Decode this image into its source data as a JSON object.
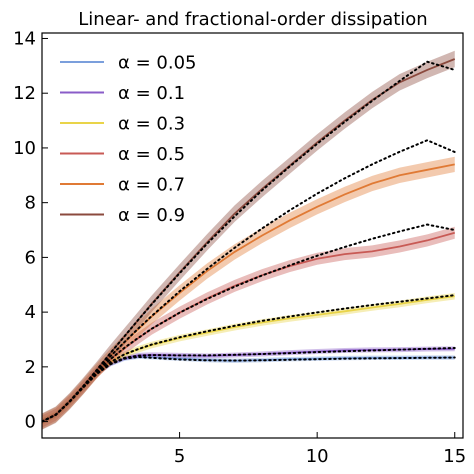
{
  "chart_data": {
    "type": "line",
    "title": "Linear- and fractional-order dissipation",
    "xlabel": "",
    "ylabel": "",
    "xlim": [
      0,
      15.3
    ],
    "ylim": [
      -0.6,
      14.2
    ],
    "xticks": [
      5,
      10,
      15
    ],
    "xtick_labels": [
      "5",
      "10",
      "15"
    ],
    "yticks": [
      0,
      2,
      4,
      6,
      8,
      10,
      12,
      14
    ],
    "ytick_labels": [
      "0",
      "2",
      "4",
      "6",
      "8",
      "10",
      "12",
      "14"
    ],
    "grid": false,
    "legend_position": "top-left",
    "fit_line_style": "dotted black",
    "series": [
      {
        "name": "α = 0.05",
        "color": "#7b9fdc",
        "x": [
          0,
          0.5,
          1,
          1.5,
          2,
          2.5,
          3,
          3.5,
          4,
          5,
          6,
          7,
          8,
          9,
          10,
          11,
          12,
          13,
          14,
          15
        ],
        "values": [
          0,
          0.25,
          0.72,
          1.25,
          1.75,
          2.1,
          2.3,
          2.37,
          2.35,
          2.3,
          2.25,
          2.22,
          2.25,
          2.28,
          2.3,
          2.32,
          2.33,
          2.33,
          2.34,
          2.34
        ],
        "band": 0.08,
        "fit": [
          0,
          0.25,
          0.72,
          1.25,
          1.75,
          2.1,
          2.3,
          2.36,
          2.33,
          2.27,
          2.24,
          2.23,
          2.24,
          2.26,
          2.28,
          2.3,
          2.31,
          2.32,
          2.33,
          2.34
        ]
      },
      {
        "name": "α = 0.1",
        "color": "#8a5cc8",
        "x": [
          0,
          0.5,
          1,
          1.5,
          2,
          2.5,
          3,
          3.5,
          4,
          5,
          6,
          7,
          8,
          9,
          10,
          11,
          12,
          13,
          14,
          15
        ],
        "values": [
          0,
          0.25,
          0.72,
          1.25,
          1.76,
          2.12,
          2.33,
          2.42,
          2.44,
          2.42,
          2.4,
          2.43,
          2.47,
          2.52,
          2.56,
          2.6,
          2.62,
          2.63,
          2.65,
          2.66
        ],
        "band": 0.09,
        "fit": [
          0,
          0.25,
          0.72,
          1.25,
          1.76,
          2.12,
          2.33,
          2.41,
          2.43,
          2.42,
          2.42,
          2.44,
          2.47,
          2.5,
          2.54,
          2.57,
          2.6,
          2.63,
          2.66,
          2.69
        ]
      },
      {
        "name": "α = 0.3",
        "color": "#e9d449",
        "x": [
          0,
          0.5,
          1,
          1.5,
          2,
          2.5,
          3,
          3.5,
          4,
          5,
          6,
          7,
          8,
          9,
          10,
          11,
          12,
          13,
          14,
          15
        ],
        "values": [
          0,
          0.25,
          0.72,
          1.26,
          1.78,
          2.18,
          2.45,
          2.64,
          2.8,
          3.05,
          3.25,
          3.45,
          3.62,
          3.77,
          3.9,
          4.03,
          4.17,
          4.3,
          4.45,
          4.58
        ],
        "band": 0.12,
        "fit": [
          0,
          0.25,
          0.72,
          1.26,
          1.78,
          2.18,
          2.46,
          2.65,
          2.82,
          3.08,
          3.3,
          3.5,
          3.68,
          3.84,
          3.99,
          4.13,
          4.26,
          4.38,
          4.5,
          4.62
        ]
      },
      {
        "name": "α = 0.5",
        "color": "#c85a55",
        "x": [
          0,
          0.5,
          1,
          1.5,
          2,
          2.5,
          3,
          3.5,
          4,
          5,
          6,
          7,
          8,
          9,
          10,
          11,
          12,
          13,
          14,
          15
        ],
        "values": [
          0,
          0.25,
          0.73,
          1.27,
          1.82,
          2.28,
          2.68,
          3.05,
          3.4,
          3.98,
          4.5,
          4.96,
          5.35,
          5.68,
          5.95,
          6.12,
          6.22,
          6.4,
          6.62,
          6.9
        ],
        "band": 0.22,
        "fit": [
          0,
          0.25,
          0.73,
          1.27,
          1.82,
          2.29,
          2.7,
          3.06,
          3.4,
          3.98,
          4.48,
          4.93,
          5.34,
          5.71,
          6.06,
          6.38,
          6.68,
          6.95,
          7.2,
          7.0
        ]
      },
      {
        "name": "α = 0.7",
        "color": "#e07a35",
        "x": [
          0,
          0.5,
          1,
          1.5,
          2,
          2.5,
          3,
          3.5,
          4,
          5,
          6,
          7,
          8,
          9,
          10,
          11,
          12,
          13,
          14,
          15
        ],
        "values": [
          0,
          0.25,
          0.73,
          1.28,
          1.86,
          2.4,
          2.9,
          3.38,
          3.85,
          4.7,
          5.5,
          6.2,
          6.8,
          7.35,
          7.85,
          8.3,
          8.7,
          9.0,
          9.2,
          9.4
        ],
        "band": 0.28,
        "fit": [
          0,
          0.25,
          0.73,
          1.28,
          1.86,
          2.4,
          2.91,
          3.4,
          3.87,
          4.76,
          5.58,
          6.35,
          7.06,
          7.72,
          8.33,
          8.89,
          9.4,
          9.86,
          10.28,
          9.85
        ]
      },
      {
        "name": "α = 0.9",
        "color": "#8b4a3e",
        "x": [
          0,
          0.5,
          1,
          1.5,
          2,
          2.5,
          3,
          3.5,
          4,
          5,
          6,
          7,
          8,
          9,
          10,
          11,
          12,
          13,
          14,
          15
        ],
        "values": [
          0,
          0.25,
          0.74,
          1.3,
          1.9,
          2.52,
          3.12,
          3.72,
          4.32,
          5.45,
          6.55,
          7.6,
          8.5,
          9.35,
          10.2,
          11.0,
          11.75,
          12.4,
          12.85,
          13.25
        ],
        "band": 0.3,
        "fit": [
          0,
          0.25,
          0.74,
          1.3,
          1.9,
          2.52,
          3.12,
          3.72,
          4.3,
          5.42,
          6.5,
          7.5,
          8.45,
          9.32,
          10.15,
          10.95,
          11.72,
          12.45,
          13.15,
          12.85
        ]
      }
    ]
  }
}
